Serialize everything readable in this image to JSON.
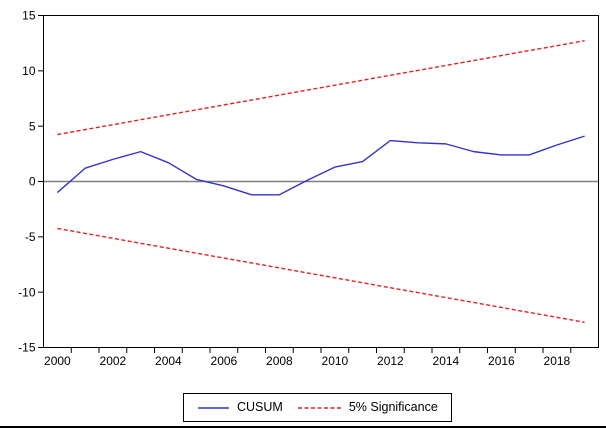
{
  "chart_data": {
    "type": "line",
    "title": "",
    "x": [
      2000,
      2001,
      2002,
      2003,
      2004,
      2005,
      2006,
      2007,
      2008,
      2009,
      2010,
      2011,
      2012,
      2013,
      2014,
      2015,
      2016,
      2017,
      2018,
      2019
    ],
    "series": [
      {
        "name": "CUSUM",
        "color": "#3333cc",
        "style": "solid",
        "values": [
          -1.0,
          1.2,
          2.0,
          2.7,
          1.7,
          0.2,
          -0.4,
          -1.2,
          -1.2,
          0.1,
          1.3,
          1.8,
          3.7,
          3.5,
          3.4,
          2.7,
          2.4,
          2.4,
          3.3,
          4.1
        ]
      },
      {
        "name": "5% Significance (upper bound)",
        "color": "#e02222",
        "style": "dashed",
        "values": [
          4.24,
          4.69,
          5.13,
          5.58,
          6.03,
          6.47,
          6.92,
          7.36,
          7.81,
          8.26,
          8.7,
          9.15,
          9.6,
          10.04,
          10.49,
          10.93,
          11.38,
          11.83,
          12.27,
          12.72
        ]
      },
      {
        "name": "5% Significance (lower bound)",
        "color": "#e02222",
        "style": "dashed",
        "values": [
          -4.24,
          -4.69,
          -5.13,
          -5.58,
          -6.03,
          -6.47,
          -6.92,
          -7.36,
          -7.81,
          -8.26,
          -8.7,
          -9.15,
          -9.6,
          -10.04,
          -10.49,
          -10.93,
          -11.38,
          -11.83,
          -12.27,
          -12.72
        ]
      }
    ],
    "xlim": [
      1999.5,
      2019.5
    ],
    "ylim": [
      -15,
      15
    ],
    "yticks": [
      15,
      10,
      5,
      0,
      -5,
      -10,
      -15
    ],
    "ytick_labels": [
      "15",
      "10",
      "5",
      "0",
      "-5",
      "-10",
      "-15"
    ],
    "xtick_label_years": [
      2000,
      2002,
      2004,
      2006,
      2008,
      2010,
      2012,
      2014,
      2016,
      2018
    ],
    "xtick_labels": [
      "2000",
      "2002",
      "2004",
      "2006",
      "2008",
      "2010",
      "2012",
      "2014",
      "2016",
      "2018"
    ],
    "grid": false,
    "zero_line": true,
    "zero_line_color": "#808080",
    "border_color": "#000000",
    "legend": {
      "position": "bottom-center",
      "entries": [
        {
          "label": "CUSUM",
          "color": "#3333cc",
          "style": "solid"
        },
        {
          "label": "5% Significance",
          "color": "#e02222",
          "style": "dashed"
        }
      ]
    }
  }
}
